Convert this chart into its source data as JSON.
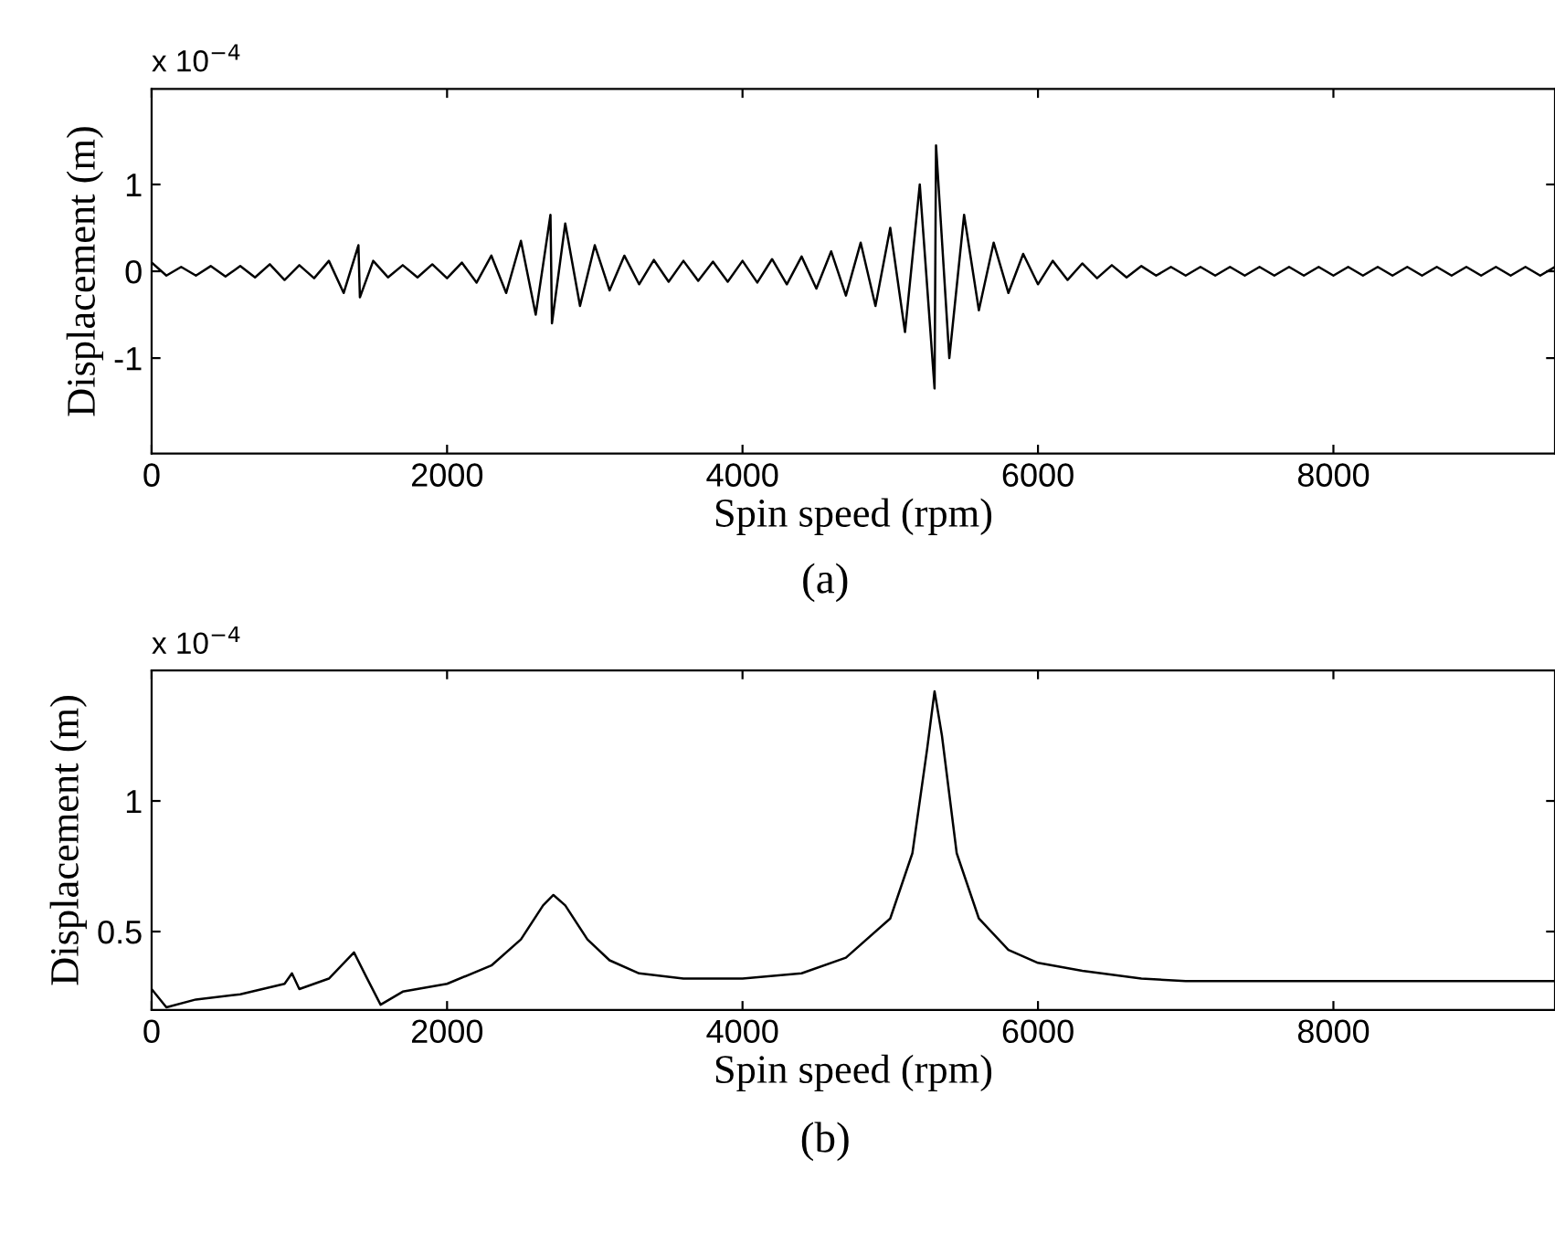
{
  "chart_data": [
    {
      "type": "line",
      "xlabel": "Spin speed (rpm)",
      "ylabel": "Displacement (m)",
      "annotations": [
        "x 10$^{−4}$",
        "(a)"
      ],
      "xlim": [
        0,
        9500
      ],
      "xticks": [
        0,
        2000,
        4000,
        6000,
        8000
      ],
      "ylim": [
        -2.1,
        2.1
      ],
      "yticks": [
        -1,
        0,
        1
      ],
      "grid": false,
      "legend": false,
      "series": [
        {
          "color": "#000000",
          "x": [
            0,
            100,
            200,
            300,
            400,
            500,
            600,
            700,
            800,
            900,
            1000,
            1100,
            1200,
            1300,
            1400,
            1410,
            1500,
            1600,
            1700,
            1800,
            1900,
            2000,
            2100,
            2200,
            2300,
            2400,
            2500,
            2600,
            2700,
            2710,
            2800,
            2900,
            3000,
            3100,
            3200,
            3300,
            3400,
            3500,
            3600,
            3700,
            3800,
            3900,
            4000,
            4100,
            4200,
            4300,
            4400,
            4500,
            4600,
            4700,
            4800,
            4900,
            5000,
            5100,
            5200,
            5300,
            5310,
            5400,
            5500,
            5600,
            5700,
            5800,
            5900,
            6000,
            6100,
            6200,
            6300,
            6400,
            6500,
            6600,
            6700,
            6800,
            6900,
            7000,
            7100,
            7200,
            7300,
            7400,
            7500,
            7600,
            7700,
            7800,
            7900,
            8000,
            8100,
            8200,
            8300,
            8400,
            8500,
            8600,
            8700,
            8800,
            8900,
            9000,
            9100,
            9200,
            9300,
            9400,
            9500
          ],
          "values": [
            0.1,
            -0.05,
            0.05,
            -0.05,
            0.06,
            -0.06,
            0.06,
            -0.07,
            0.08,
            -0.1,
            0.07,
            -0.08,
            0.12,
            -0.25,
            0.3,
            -0.3,
            0.12,
            -0.07,
            0.07,
            -0.07,
            0.08,
            -0.08,
            0.1,
            -0.13,
            0.18,
            -0.25,
            0.35,
            -0.5,
            0.65,
            -0.6,
            0.55,
            -0.4,
            0.3,
            -0.22,
            0.18,
            -0.15,
            0.13,
            -0.12,
            0.12,
            -0.11,
            0.11,
            -0.12,
            0.12,
            -0.13,
            0.14,
            -0.15,
            0.17,
            -0.2,
            0.23,
            -0.28,
            0.33,
            -0.4,
            0.5,
            -0.7,
            1.0,
            -1.35,
            1.45,
            -1.0,
            0.65,
            -0.45,
            0.33,
            -0.25,
            0.2,
            -0.15,
            0.12,
            -0.1,
            0.09,
            -0.08,
            0.07,
            -0.07,
            0.06,
            -0.05,
            0.05,
            -0.05,
            0.05,
            -0.05,
            0.05,
            -0.05,
            0.05,
            -0.05,
            0.05,
            -0.05,
            0.05,
            -0.05,
            0.05,
            -0.05,
            0.05,
            -0.05,
            0.05,
            -0.05,
            0.05,
            -0.05,
            0.05,
            -0.05,
            0.05,
            -0.05,
            0.05,
            -0.05,
            0.05
          ]
        }
      ]
    },
    {
      "type": "line",
      "xlabel": "Spin speed (rpm)",
      "ylabel": "Displacement (m)",
      "annotations": [
        "x 10$^{−4}$",
        "(b)"
      ],
      "xlim": [
        0,
        9500
      ],
      "xticks": [
        0,
        2000,
        4000,
        6000,
        8000
      ],
      "ylim": [
        0.2,
        1.5
      ],
      "yticks": [
        0.5,
        1
      ],
      "grid": false,
      "legend": false,
      "series": [
        {
          "color": "#000000",
          "x": [
            0,
            100,
            300,
            600,
            900,
            950,
            1000,
            1200,
            1370,
            1450,
            1550,
            1700,
            2000,
            2300,
            2500,
            2650,
            2720,
            2800,
            2950,
            3100,
            3300,
            3600,
            4000,
            4400,
            4700,
            5000,
            5150,
            5250,
            5300,
            5350,
            5450,
            5600,
            5800,
            6000,
            6300,
            6700,
            7000,
            8000,
            9500
          ],
          "values": [
            0.28,
            0.21,
            0.24,
            0.26,
            0.3,
            0.34,
            0.28,
            0.32,
            0.42,
            0.33,
            0.22,
            0.27,
            0.3,
            0.37,
            0.47,
            0.6,
            0.64,
            0.6,
            0.47,
            0.39,
            0.34,
            0.32,
            0.32,
            0.34,
            0.4,
            0.55,
            0.8,
            1.2,
            1.42,
            1.25,
            0.8,
            0.55,
            0.43,
            0.38,
            0.35,
            0.32,
            0.31,
            0.31,
            0.31
          ]
        }
      ]
    }
  ]
}
